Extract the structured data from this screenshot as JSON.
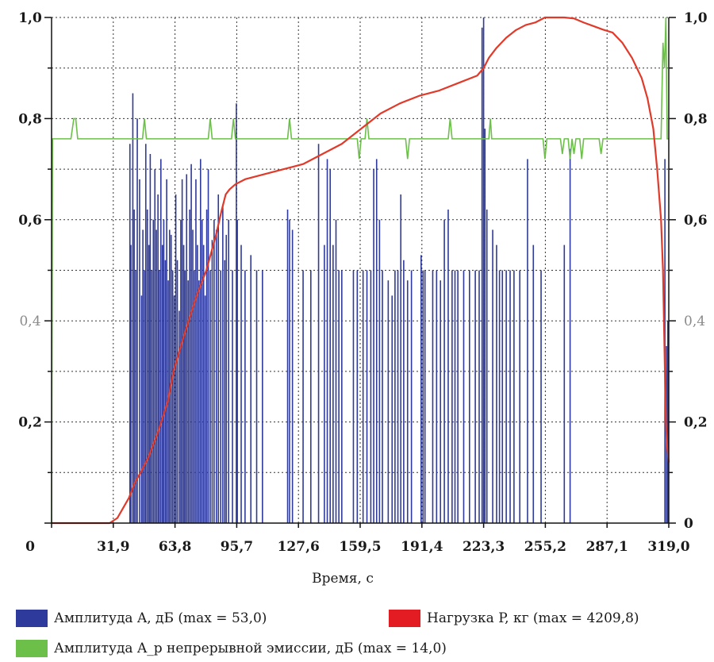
{
  "chart_data": {
    "type": "bar",
    "title": "",
    "xlabel": "Время, с",
    "ylabel": "",
    "xlim": [
      0,
      319
    ],
    "ylim": [
      0,
      1.0
    ],
    "grid": true,
    "legend_position": "bottom",
    "x_ticks": [
      "0",
      "31,9",
      "63,8",
      "95,7",
      "127,6",
      "159,5",
      "191,4",
      "223,3",
      "255,2",
      "287,1",
      "319,0"
    ],
    "x_tick_values": [
      0,
      31.9,
      63.8,
      95.7,
      127.6,
      159.5,
      191.4,
      223.3,
      255.2,
      287.1,
      319.0
    ],
    "y_ticks_left": [
      "0,2",
      "0,4",
      "0,6",
      "0,8",
      "1,0"
    ],
    "y_ticks_right": [
      "0",
      "0,2",
      "0,4",
      "0,6",
      "0,8",
      "1,0"
    ],
    "y_tick_values": [
      0,
      0.2,
      0.4,
      0.6,
      0.8,
      1.0
    ],
    "series": [
      {
        "name": "Амплитуда A, дБ (max = 53,0)",
        "type": "bar",
        "color": "#2e3a9c",
        "x": [
          40.5,
          41.0,
          42.0,
          42.7,
          43.5,
          44.3,
          45.5,
          46.5,
          47.2,
          48.0,
          48.7,
          49.5,
          50.3,
          51.0,
          51.8,
          52.6,
          53.4,
          54.2,
          55.0,
          55.7,
          56.5,
          57.3,
          58.0,
          58.8,
          59.5,
          60.3,
          61.0,
          61.8,
          62.6,
          63.4,
          64.2,
          65.0,
          66.0,
          66.8,
          67.5,
          68.3,
          69.0,
          69.8,
          70.6,
          71.4,
          72.2,
          73.0,
          73.8,
          74.6,
          75.4,
          76.2,
          77.0,
          77.8,
          78.6,
          79.4,
          80.2,
          81.0,
          82.0,
          83.0,
          84.0,
          85.2,
          86.2,
          87.4,
          88.5,
          89.5,
          90.3,
          91.5,
          93.5,
          95.5,
          96.0,
          98.0,
          100.0,
          103.0,
          106.0,
          109.0,
          122.0,
          123.0,
          124.5,
          130.0,
          134.0,
          138.0,
          141.0,
          142.5,
          144.0,
          145.5,
          147.0,
          148.5,
          150.0,
          156.0,
          158.0,
          161.0,
          163.0,
          165.0,
          166.5,
          168.0,
          169.5,
          171.0,
          174.0,
          176.0,
          177.5,
          179.0,
          180.5,
          182.0,
          184.0,
          186.0,
          191.0,
          192.0,
          193.0,
          197.0,
          199.0,
          201.0,
          203.0,
          205.0,
          207.0,
          208.5,
          210.0,
          213.0,
          216.0,
          219.0,
          221.0,
          222.5,
          223.3,
          224.0,
          225.0,
          228.0,
          230.0,
          231.5,
          233.0,
          235.0,
          237.0,
          239.0,
          242.0,
          246.0,
          249.0,
          253.0,
          265.0,
          268.0,
          317.0,
          317.8,
          318.5
        ],
        "values": [
          0.75,
          0.55,
          0.85,
          0.62,
          0.5,
          0.8,
          0.68,
          0.45,
          0.58,
          0.5,
          0.75,
          0.62,
          0.55,
          0.73,
          0.5,
          0.6,
          0.7,
          0.58,
          0.65,
          0.5,
          0.72,
          0.55,
          0.6,
          0.52,
          0.68,
          0.48,
          0.58,
          0.57,
          0.5,
          0.45,
          0.65,
          0.52,
          0.42,
          0.6,
          0.68,
          0.55,
          0.5,
          0.69,
          0.48,
          0.62,
          0.71,
          0.58,
          0.5,
          0.68,
          0.55,
          0.48,
          0.72,
          0.6,
          0.55,
          0.45,
          0.62,
          0.7,
          0.5,
          0.56,
          0.6,
          0.58,
          0.65,
          0.5,
          0.63,
          0.52,
          0.57,
          0.6,
          0.5,
          0.83,
          0.6,
          0.55,
          0.5,
          0.53,
          0.5,
          0.5,
          0.62,
          0.6,
          0.58,
          0.5,
          0.5,
          0.75,
          0.55,
          0.72,
          0.7,
          0.55,
          0.6,
          0.5,
          0.5,
          0.5,
          0.5,
          0.5,
          0.5,
          0.5,
          0.7,
          0.72,
          0.6,
          0.5,
          0.48,
          0.45,
          0.5,
          0.5,
          0.65,
          0.52,
          0.48,
          0.5,
          0.53,
          0.5,
          0.5,
          0.5,
          0.5,
          0.48,
          0.6,
          0.62,
          0.5,
          0.5,
          0.5,
          0.5,
          0.5,
          0.5,
          0.5,
          0.98,
          1.0,
          0.78,
          0.62,
          0.58,
          0.55,
          0.5,
          0.5,
          0.5,
          0.5,
          0.5,
          0.5,
          0.72,
          0.55,
          0.5,
          0.55,
          0.74,
          0.72,
          0.35,
          0.4
        ]
      },
      {
        "name": "Амплитуда A_p непрерывной эмиссии, дБ (max = 14,0)",
        "type": "line",
        "color": "#6cc04a",
        "baseline": 0.76,
        "x": [
          0,
          0.5,
          1.0,
          1.5,
          10.0,
          11.5,
          12.5,
          13.5,
          47.0,
          48.0,
          49.0,
          81.0,
          82.0,
          83.0,
          93.0,
          94.0,
          95.0,
          122.0,
          123.0,
          124.0,
          158.0,
          159.0,
          160.0,
          162.0,
          163.0,
          164.0,
          183.0,
          184.0,
          185.0,
          205.0,
          206.0,
          207.0,
          226.0,
          226.8,
          227.5,
          254.0,
          255.0,
          256.0,
          263.0,
          264.0,
          265.0,
          267.0,
          268.0,
          269.0,
          270.0,
          271.0,
          273.0,
          274.0,
          275.0,
          283.0,
          284.0,
          285.0,
          315.0,
          316.0,
          316.8,
          317.5,
          318.2,
          319.0
        ],
        "y": [
          0.0,
          0.76,
          0.76,
          0.76,
          0.76,
          0.8,
          0.8,
          0.76,
          0.76,
          0.8,
          0.76,
          0.76,
          0.8,
          0.76,
          0.76,
          0.8,
          0.76,
          0.76,
          0.8,
          0.76,
          0.76,
          0.72,
          0.76,
          0.76,
          0.8,
          0.76,
          0.76,
          0.72,
          0.76,
          0.76,
          0.8,
          0.76,
          0.76,
          0.8,
          0.76,
          0.76,
          0.72,
          0.76,
          0.76,
          0.73,
          0.76,
          0.76,
          0.72,
          0.76,
          0.73,
          0.76,
          0.76,
          0.72,
          0.76,
          0.76,
          0.73,
          0.76,
          0.76,
          0.95,
          0.9,
          1.0,
          0.76,
          0.76
        ]
      },
      {
        "name": "Нагрузка P, кг (max = 4209,8)",
        "type": "line",
        "color": "#e03a2a",
        "x": [
          0,
          10,
          20,
          30,
          34,
          37,
          40,
          43,
          46,
          50,
          55,
          60,
          63,
          66,
          70,
          75,
          80,
          85,
          88,
          90,
          92,
          95,
          100,
          110,
          120,
          125,
          130,
          140,
          150,
          160,
          170,
          180,
          190,
          200,
          210,
          220,
          223.3,
          226,
          230,
          235,
          240,
          245,
          250,
          255,
          260,
          265,
          270,
          275,
          280,
          285,
          290,
          295,
          300,
          305,
          308,
          311,
          313,
          315,
          316,
          317,
          317.5,
          318.2,
          319.0
        ],
        "y": [
          0.0,
          0.0,
          0.0,
          0.0,
          0.01,
          0.03,
          0.05,
          0.08,
          0.1,
          0.13,
          0.18,
          0.24,
          0.3,
          0.34,
          0.39,
          0.45,
          0.5,
          0.57,
          0.62,
          0.65,
          0.66,
          0.67,
          0.68,
          0.69,
          0.7,
          0.705,
          0.71,
          0.73,
          0.75,
          0.78,
          0.81,
          0.83,
          0.845,
          0.855,
          0.87,
          0.885,
          0.9,
          0.92,
          0.94,
          0.96,
          0.975,
          0.985,
          0.99,
          1.0,
          1.0,
          1.0,
          0.998,
          0.99,
          0.983,
          0.976,
          0.97,
          0.95,
          0.92,
          0.88,
          0.84,
          0.78,
          0.7,
          0.6,
          0.5,
          0.3,
          0.2,
          0.15,
          0.12
        ]
      }
    ]
  },
  "legend": {
    "amplitude_a": "Амплитуда A, дБ (max = 53,0)",
    "load_p": "Нагрузка P, кг (max = 4209,8)",
    "amplitude_ap": "Амплитуда A_p непрерывной эмиссии, дБ (max = 14,0)"
  }
}
